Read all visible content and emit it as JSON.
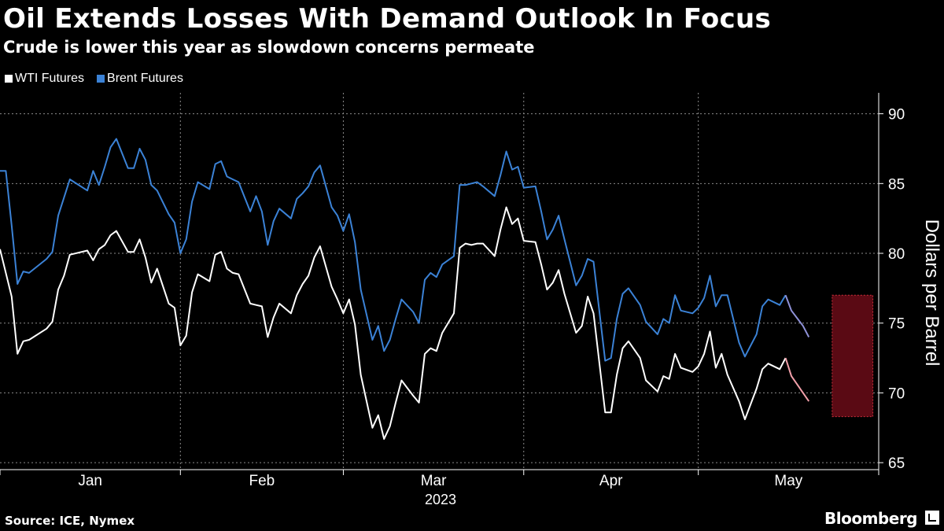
{
  "title": "Oil Extends Losses With Demand Outlook In Focus",
  "subtitle": "Crude is lower this year as slowdown concerns permeate",
  "source": "Source: ICE, Nymex",
  "brand": "Bloomberg",
  "legend": [
    {
      "label": "WTI Futures",
      "color": "#ffffff"
    },
    {
      "label": "Brent Futures",
      "color": "#3b82d6"
    }
  ],
  "chart_data": {
    "type": "line",
    "title": "Oil Extends Losses With Demand Outlook In Focus",
    "subtitle": "Crude is lower this year as slowdown concerns permeate",
    "ylabel": "Dollars per Barrel",
    "xlabel": "2023",
    "ylim": [
      64.5,
      91.5
    ],
    "y_ticks": [
      65,
      70,
      75,
      80,
      85,
      90
    ],
    "x_tick_labels": [
      "Jan",
      "Feb",
      "Mar",
      "Apr",
      "May"
    ],
    "x_range": [
      "2023-01-01",
      "2023-06-01"
    ],
    "grid": true,
    "legend_position": "top-left",
    "highlight": {
      "x_start": "2023-05-24",
      "x_end": "2023-05-31",
      "y_min": 68.3,
      "y_max": 77.0,
      "color": "#5a0a14"
    },
    "series": [
      {
        "name": "WTI Futures",
        "color": "#ffffff",
        "highlight_color": "#f2a0aa",
        "points": [
          [
            "2023-01-01",
            80.3
          ],
          [
            "2023-01-03",
            76.9
          ],
          [
            "2023-01-04",
            72.8
          ],
          [
            "2023-01-05",
            73.7
          ],
          [
            "2023-01-06",
            73.8
          ],
          [
            "2023-01-09",
            74.6
          ],
          [
            "2023-01-10",
            75.1
          ],
          [
            "2023-01-11",
            77.4
          ],
          [
            "2023-01-12",
            78.4
          ],
          [
            "2023-01-13",
            79.9
          ],
          [
            "2023-01-16",
            80.2
          ],
          [
            "2023-01-17",
            79.5
          ],
          [
            "2023-01-18",
            80.3
          ],
          [
            "2023-01-19",
            80.6
          ],
          [
            "2023-01-20",
            81.3
          ],
          [
            "2023-01-21",
            81.6
          ],
          [
            "2023-01-23",
            80.1
          ],
          [
            "2023-01-24",
            80.1
          ],
          [
            "2023-01-25",
            81.0
          ],
          [
            "2023-01-26",
            79.7
          ],
          [
            "2023-01-27",
            77.9
          ],
          [
            "2023-01-28",
            78.9
          ],
          [
            "2023-01-30",
            76.4
          ],
          [
            "2023-01-31",
            76.1
          ],
          [
            "2023-02-01",
            73.4
          ],
          [
            "2023-02-02",
            74.1
          ],
          [
            "2023-02-03",
            77.2
          ],
          [
            "2023-02-04",
            78.5
          ],
          [
            "2023-02-06",
            78.0
          ],
          [
            "2023-02-07",
            79.9
          ],
          [
            "2023-02-08",
            80.1
          ],
          [
            "2023-02-09",
            78.9
          ],
          [
            "2023-02-10",
            78.6
          ],
          [
            "2023-02-11",
            78.5
          ],
          [
            "2023-02-13",
            76.4
          ],
          [
            "2023-02-14",
            76.3
          ],
          [
            "2023-02-15",
            76.2
          ],
          [
            "2023-02-16",
            74.0
          ],
          [
            "2023-02-17",
            75.4
          ],
          [
            "2023-02-18",
            76.4
          ],
          [
            "2023-02-20",
            75.7
          ],
          [
            "2023-02-21",
            77.0
          ],
          [
            "2023-02-22",
            77.8
          ],
          [
            "2023-02-23",
            78.4
          ],
          [
            "2023-02-24",
            79.7
          ],
          [
            "2023-02-25",
            80.5
          ],
          [
            "2023-02-27",
            77.6
          ],
          [
            "2023-02-28",
            76.7
          ],
          [
            "2023-03-01",
            75.7
          ],
          [
            "2023-03-02",
            76.7
          ],
          [
            "2023-03-03",
            74.9
          ],
          [
            "2023-03-04",
            71.3
          ],
          [
            "2023-03-06",
            67.5
          ],
          [
            "2023-03-07",
            68.4
          ],
          [
            "2023-03-08",
            66.7
          ],
          [
            "2023-03-09",
            67.6
          ],
          [
            "2023-03-10",
            69.3
          ],
          [
            "2023-03-11",
            70.9
          ],
          [
            "2023-03-13",
            69.8
          ],
          [
            "2023-03-14",
            69.3
          ],
          [
            "2023-03-15",
            72.8
          ],
          [
            "2023-03-16",
            73.2
          ],
          [
            "2023-03-17",
            73.0
          ],
          [
            "2023-03-18",
            74.3
          ],
          [
            "2023-03-20",
            75.7
          ],
          [
            "2023-03-21",
            80.4
          ],
          [
            "2023-03-22",
            80.7
          ],
          [
            "2023-03-23",
            80.6
          ],
          [
            "2023-03-24",
            80.7
          ],
          [
            "2023-03-25",
            80.7
          ],
          [
            "2023-03-27",
            79.8
          ],
          [
            "2023-03-28",
            81.7
          ],
          [
            "2023-03-29",
            83.3
          ],
          [
            "2023-03-30",
            82.1
          ],
          [
            "2023-03-31",
            82.5
          ],
          [
            "2023-04-01",
            80.9
          ],
          [
            "2023-04-03",
            80.8
          ],
          [
            "2023-04-04",
            79.2
          ],
          [
            "2023-04-05",
            77.4
          ],
          [
            "2023-04-06",
            77.9
          ],
          [
            "2023-04-07",
            78.8
          ],
          [
            "2023-04-08",
            77.1
          ],
          [
            "2023-04-10",
            74.3
          ],
          [
            "2023-04-11",
            74.8
          ],
          [
            "2023-04-12",
            76.9
          ],
          [
            "2023-04-13",
            75.7
          ],
          [
            "2023-04-15",
            68.6
          ],
          [
            "2023-04-16",
            68.6
          ],
          [
            "2023-04-17",
            71.3
          ],
          [
            "2023-04-18",
            73.2
          ],
          [
            "2023-04-19",
            73.7
          ],
          [
            "2023-04-21",
            72.5
          ],
          [
            "2023-04-22",
            70.9
          ],
          [
            "2023-04-24",
            70.1
          ],
          [
            "2023-04-25",
            71.2
          ],
          [
            "2023-04-26",
            71.0
          ],
          [
            "2023-04-27",
            72.8
          ],
          [
            "2023-04-28",
            71.8
          ],
          [
            "2023-04-30",
            71.5
          ],
          [
            "2023-05-01",
            71.9
          ],
          [
            "2023-05-02",
            72.8
          ],
          [
            "2023-05-03",
            74.4
          ],
          [
            "2023-05-04",
            71.8
          ],
          [
            "2023-05-05",
            72.8
          ],
          [
            "2023-05-06",
            71.3
          ],
          [
            "2023-05-08",
            69.4
          ],
          [
            "2023-05-09",
            68.1
          ],
          [
            "2023-05-11",
            70.3
          ],
          [
            "2023-05-12",
            71.7
          ],
          [
            "2023-05-13",
            72.1
          ],
          [
            "2023-05-15",
            71.7
          ],
          [
            "2023-05-16",
            72.5
          ],
          [
            "2023-05-17",
            71.2
          ],
          [
            "2023-05-19",
            70.0
          ],
          [
            "2023-05-20",
            69.4
          ]
        ],
        "highlight_from": "2023-05-16"
      },
      {
        "name": "Brent Futures",
        "color": "#3b82d6",
        "highlight_color": "#8f92d8",
        "points": [
          [
            "2023-01-01",
            85.9
          ],
          [
            "2023-01-02",
            85.9
          ],
          [
            "2023-01-03",
            82.0
          ],
          [
            "2023-01-04",
            77.8
          ],
          [
            "2023-01-05",
            78.7
          ],
          [
            "2023-01-06",
            78.6
          ],
          [
            "2023-01-09",
            79.6
          ],
          [
            "2023-01-10",
            80.1
          ],
          [
            "2023-01-11",
            82.7
          ],
          [
            "2023-01-12",
            84.0
          ],
          [
            "2023-01-13",
            85.3
          ],
          [
            "2023-01-16",
            84.5
          ],
          [
            "2023-01-17",
            85.9
          ],
          [
            "2023-01-18",
            84.9
          ],
          [
            "2023-01-19",
            86.2
          ],
          [
            "2023-01-20",
            87.6
          ],
          [
            "2023-01-21",
            88.2
          ],
          [
            "2023-01-23",
            86.1
          ],
          [
            "2023-01-24",
            86.1
          ],
          [
            "2023-01-25",
            87.5
          ],
          [
            "2023-01-26",
            86.7
          ],
          [
            "2023-01-27",
            84.9
          ],
          [
            "2023-01-28",
            84.5
          ],
          [
            "2023-01-30",
            82.8
          ],
          [
            "2023-01-31",
            82.2
          ],
          [
            "2023-02-01",
            80.0
          ],
          [
            "2023-02-02",
            81.0
          ],
          [
            "2023-02-03",
            83.7
          ],
          [
            "2023-02-04",
            85.1
          ],
          [
            "2023-02-06",
            84.6
          ],
          [
            "2023-02-07",
            86.4
          ],
          [
            "2023-02-08",
            86.6
          ],
          [
            "2023-02-09",
            85.5
          ],
          [
            "2023-02-10",
            85.3
          ],
          [
            "2023-02-11",
            85.1
          ],
          [
            "2023-02-13",
            83.0
          ],
          [
            "2023-02-14",
            84.1
          ],
          [
            "2023-02-15",
            83.0
          ],
          [
            "2023-02-16",
            80.6
          ],
          [
            "2023-02-17",
            82.3
          ],
          [
            "2023-02-18",
            83.2
          ],
          [
            "2023-02-20",
            82.5
          ],
          [
            "2023-02-21",
            83.9
          ],
          [
            "2023-02-22",
            84.3
          ],
          [
            "2023-02-23",
            84.8
          ],
          [
            "2023-02-24",
            85.8
          ],
          [
            "2023-02-25",
            86.3
          ],
          [
            "2023-02-27",
            83.3
          ],
          [
            "2023-02-28",
            82.7
          ],
          [
            "2023-03-01",
            81.6
          ],
          [
            "2023-03-02",
            82.8
          ],
          [
            "2023-03-03",
            80.8
          ],
          [
            "2023-03-04",
            77.4
          ],
          [
            "2023-03-06",
            73.8
          ],
          [
            "2023-03-07",
            74.8
          ],
          [
            "2023-03-08",
            73.0
          ],
          [
            "2023-03-09",
            73.8
          ],
          [
            "2023-03-10",
            75.3
          ],
          [
            "2023-03-11",
            76.7
          ],
          [
            "2023-03-13",
            75.8
          ],
          [
            "2023-03-14",
            75.0
          ],
          [
            "2023-03-15",
            78.1
          ],
          [
            "2023-03-16",
            78.6
          ],
          [
            "2023-03-17",
            78.3
          ],
          [
            "2023-03-18",
            79.2
          ],
          [
            "2023-03-20",
            79.8
          ],
          [
            "2023-03-21",
            84.9
          ],
          [
            "2023-03-22",
            84.9
          ],
          [
            "2023-03-23",
            85.0
          ],
          [
            "2023-03-24",
            85.1
          ],
          [
            "2023-03-25",
            84.8
          ],
          [
            "2023-03-27",
            84.1
          ],
          [
            "2023-03-28",
            85.6
          ],
          [
            "2023-03-29",
            87.3
          ],
          [
            "2023-03-30",
            86.0
          ],
          [
            "2023-03-31",
            86.2
          ],
          [
            "2023-04-01",
            84.7
          ],
          [
            "2023-04-03",
            84.8
          ],
          [
            "2023-04-04",
            83.0
          ],
          [
            "2023-04-05",
            81.0
          ],
          [
            "2023-04-06",
            81.7
          ],
          [
            "2023-04-07",
            82.7
          ],
          [
            "2023-04-08",
            81.0
          ],
          [
            "2023-04-10",
            77.7
          ],
          [
            "2023-04-11",
            78.4
          ],
          [
            "2023-04-12",
            79.6
          ],
          [
            "2023-04-13",
            79.4
          ],
          [
            "2023-04-15",
            72.3
          ],
          [
            "2023-04-16",
            72.5
          ],
          [
            "2023-04-17",
            75.3
          ],
          [
            "2023-04-18",
            77.1
          ],
          [
            "2023-04-19",
            77.5
          ],
          [
            "2023-04-21",
            76.3
          ],
          [
            "2023-04-22",
            75.1
          ],
          [
            "2023-04-24",
            74.2
          ],
          [
            "2023-04-25",
            75.3
          ],
          [
            "2023-04-26",
            75.0
          ],
          [
            "2023-04-27",
            77.0
          ],
          [
            "2023-04-28",
            75.9
          ],
          [
            "2023-04-30",
            75.7
          ],
          [
            "2023-05-01",
            76.1
          ],
          [
            "2023-05-02",
            76.8
          ],
          [
            "2023-05-03",
            78.4
          ],
          [
            "2023-05-04",
            76.2
          ],
          [
            "2023-05-05",
            77.0
          ],
          [
            "2023-05-06",
            77.0
          ],
          [
            "2023-05-08",
            73.6
          ],
          [
            "2023-05-09",
            72.6
          ],
          [
            "2023-05-11",
            74.2
          ],
          [
            "2023-05-12",
            76.2
          ],
          [
            "2023-05-13",
            76.7
          ],
          [
            "2023-05-15",
            76.3
          ],
          [
            "2023-05-16",
            77.0
          ],
          [
            "2023-05-17",
            75.9
          ],
          [
            "2023-05-19",
            74.8
          ],
          [
            "2023-05-20",
            74.0
          ]
        ],
        "highlight_from": "2023-05-16"
      }
    ]
  }
}
